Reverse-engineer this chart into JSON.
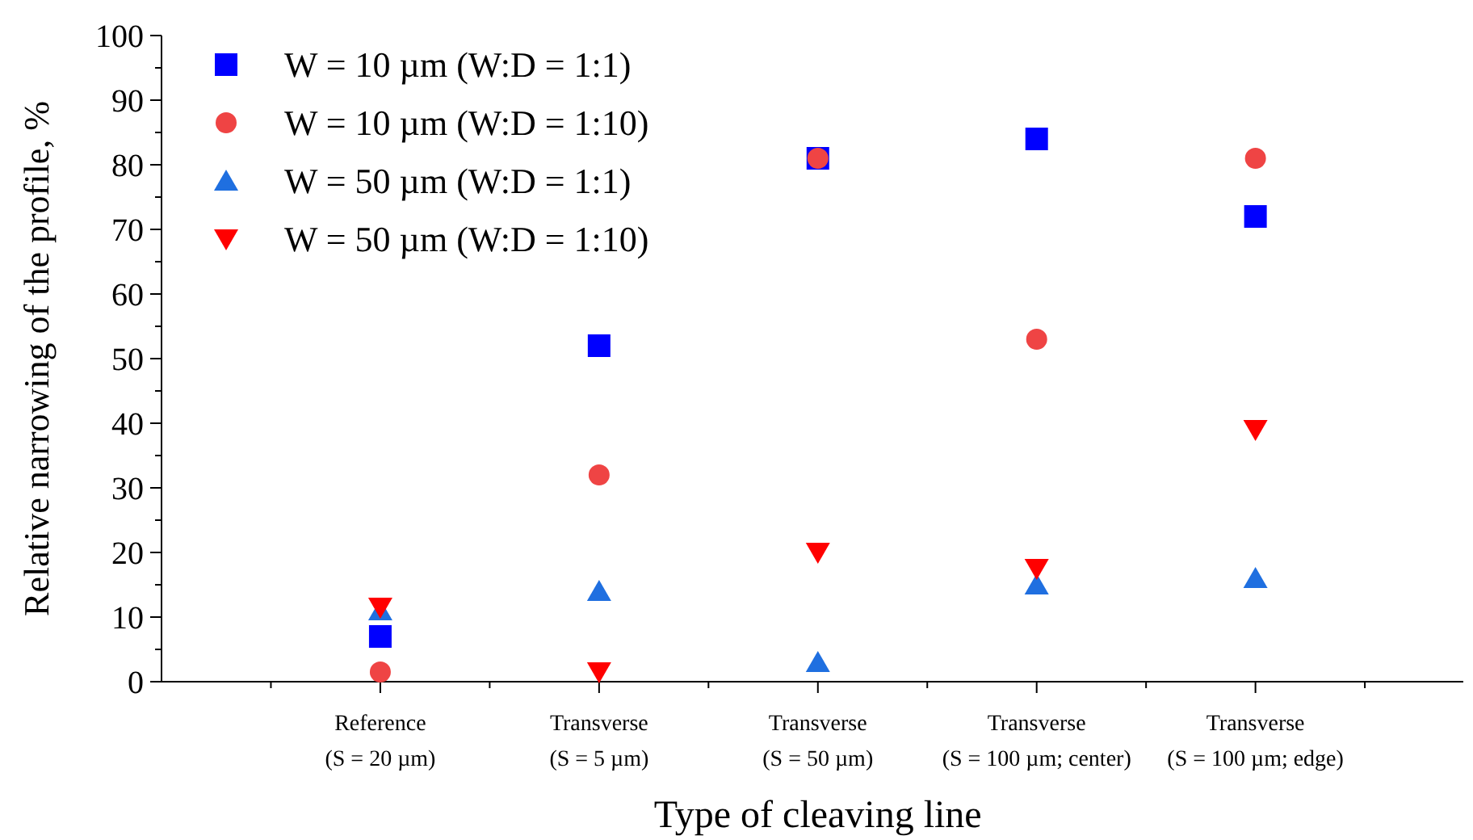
{
  "chart_data": {
    "type": "scatter",
    "xlabel": "Type of cleaving line",
    "ylabel": "Relative narrowing of the profile, %",
    "categories": [
      "Reference\n(S = 20 µm)",
      "Transverse\n(S = 5 µm)",
      "Transverse\n(S = 50 µm)",
      "Transverse\n(S = 100 µm; center)",
      "Transverse\n(S = 100 µm; edge)"
    ],
    "series": [
      {
        "name": "W = 10 µm (W:D = 1:1)",
        "color": "#0000ff",
        "marker": "square",
        "values": [
          7,
          52,
          81,
          84,
          72
        ]
      },
      {
        "name": "W = 10 µm (W:D = 1:10)",
        "color": "#ef4444",
        "marker": "circle",
        "values": [
          1.5,
          32,
          81,
          53,
          81
        ]
      },
      {
        "name": "W = 50 µm (W:D = 1:1)",
        "color": "#1f6fe0",
        "marker": "triangle",
        "values": [
          11,
          14,
          3,
          15,
          16
        ]
      },
      {
        "name": "W = 50 µm (W:D = 1:10)",
        "color": "#ff0000",
        "marker": "triangle-down",
        "values": [
          11.5,
          1.5,
          20,
          17.5,
          39
        ]
      }
    ],
    "ylim": [
      0,
      100
    ],
    "yticks": [
      0,
      10,
      20,
      30,
      40,
      50,
      60,
      70,
      80,
      90,
      100
    ],
    "grid": false,
    "legend": "top left"
  }
}
